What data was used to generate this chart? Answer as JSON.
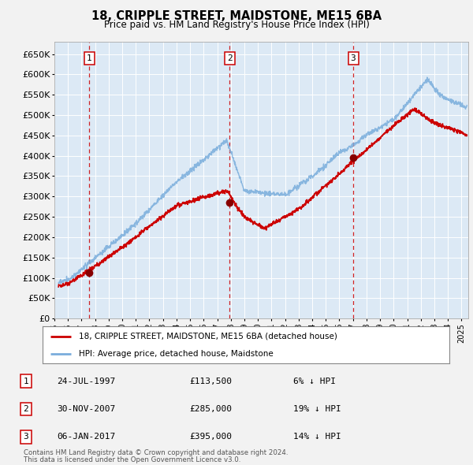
{
  "title": "18, CRIPPLE STREET, MAIDSTONE, ME15 6BA",
  "subtitle": "Price paid vs. HM Land Registry's House Price Index (HPI)",
  "ylabel_ticks": [
    "£0",
    "£50K",
    "£100K",
    "£150K",
    "£200K",
    "£250K",
    "£300K",
    "£350K",
    "£400K",
    "£450K",
    "£500K",
    "£550K",
    "£600K",
    "£650K"
  ],
  "ytick_values": [
    0,
    50000,
    100000,
    150000,
    200000,
    250000,
    300000,
    350000,
    400000,
    450000,
    500000,
    550000,
    600000,
    650000
  ],
  "ylim": [
    0,
    680000
  ],
  "xlim_start": 1995.3,
  "xlim_end": 2025.5,
  "plot_bg_color": "#dce9f5",
  "grid_color": "#ffffff",
  "fig_bg_color": "#f2f2f2",
  "sale1_date": 1997.56,
  "sale1_price": 113500,
  "sale1_label": "1",
  "sale1_hpi_note": "6% ↓ HPI",
  "sale1_date_str": "24-JUL-1997",
  "sale1_price_str": "£113,500",
  "sale2_date": 2007.92,
  "sale2_price": 285000,
  "sale2_label": "2",
  "sale2_hpi_note": "19% ↓ HPI",
  "sale2_date_str": "30-NOV-2007",
  "sale2_price_str": "£285,000",
  "sale3_date": 2017.02,
  "sale3_price": 395000,
  "sale3_label": "3",
  "sale3_hpi_note": "14% ↓ HPI",
  "sale3_date_str": "06-JAN-2017",
  "sale3_price_str": "£395,000",
  "hpi_line_color": "#7aaddc",
  "price_line_color": "#cc0000",
  "dot_color": "#880000",
  "vline_color": "#cc0000",
  "legend_label_price": "18, CRIPPLE STREET, MAIDSTONE, ME15 6BA (detached house)",
  "legend_label_hpi": "HPI: Average price, detached house, Maidstone",
  "footer1": "Contains HM Land Registry data © Crown copyright and database right 2024.",
  "footer2": "This data is licensed under the Open Government Licence v3.0."
}
